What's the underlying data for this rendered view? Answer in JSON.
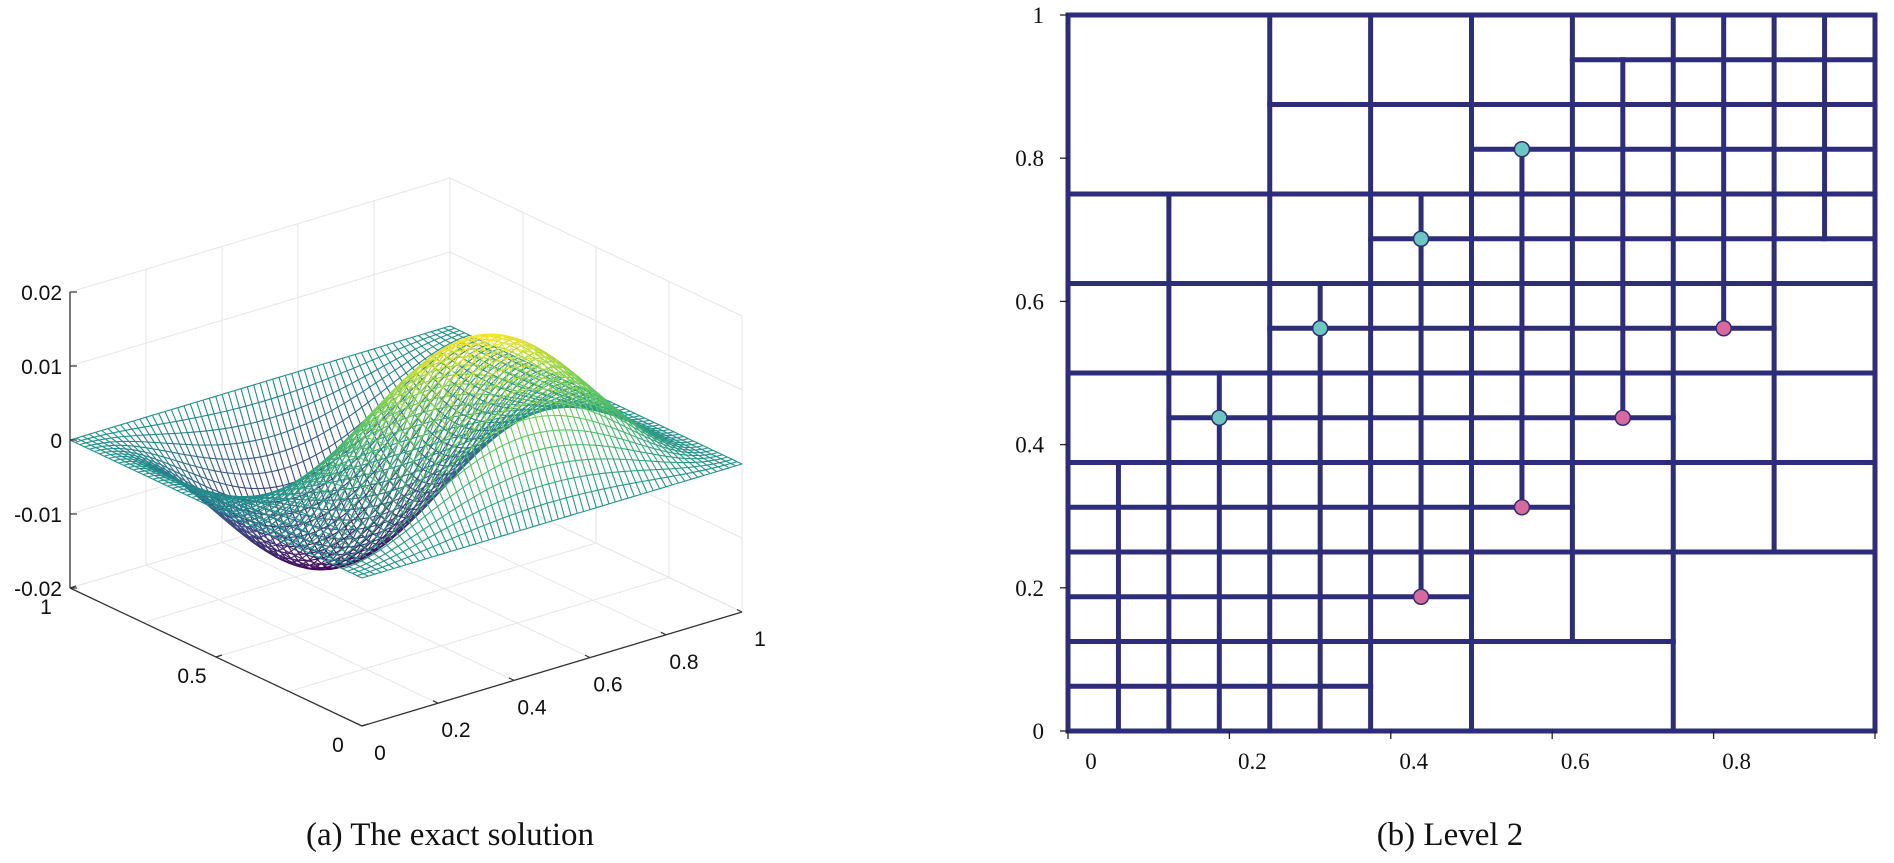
{
  "figure": {
    "caption_a": "(a) The exact solution",
    "caption_b": "(b) Level 2"
  },
  "chart_data": [
    {
      "type": "surface",
      "title": "",
      "caption": "(a) The exact solution",
      "xlabel": "",
      "ylabel": "",
      "zlabel": "",
      "xlim": [
        0,
        1
      ],
      "ylim": [
        0,
        1
      ],
      "zlim": [
        -0.02,
        0.02
      ],
      "x_ticks": [
        "0",
        "0.2",
        "0.4",
        "0.6",
        "0.8",
        "1"
      ],
      "y_ticks": [
        "0",
        "0.5",
        "1"
      ],
      "z_ticks": [
        "0.02",
        "0.01",
        "0",
        "-0.01",
        "-0.02"
      ],
      "grid": true,
      "mesh_resolution": 60,
      "function": "z = 0.02 * sin(2*pi*y) * x^2 * (1 - x)^2 * 16 (approximate reconstruction)",
      "colormap": [
        "#440154",
        "#3b528b",
        "#21918c",
        "#5ec962",
        "#fde725"
      ]
    },
    {
      "type": "mesh",
      "title": "",
      "caption": "(b) Level 2",
      "xlim": [
        0,
        1
      ],
      "ylim": [
        0,
        1
      ],
      "x_ticks": [
        "0",
        "0.2",
        "0.4",
        "0.6",
        "0.8",
        "1"
      ],
      "y_ticks": [
        "0",
        "0.2",
        "0.4",
        "0.6",
        "0.8",
        "1"
      ],
      "line_color": "#2e2d7b",
      "vertical_segments": [
        [
          0,
          0,
          1
        ],
        [
          0.0625,
          0,
          0.375
        ],
        [
          0.125,
          0,
          0.75
        ],
        [
          0.1875,
          0,
          0.5
        ],
        [
          0.25,
          0,
          1
        ],
        [
          0.3125,
          0,
          0.625
        ],
        [
          0.375,
          0,
          1
        ],
        [
          0.4375,
          0.1875,
          0.75
        ],
        [
          0.5,
          0,
          1
        ],
        [
          0.5625,
          0.3125,
          0.8125
        ],
        [
          0.625,
          0.125,
          1
        ],
        [
          0.6875,
          0.4375,
          0.9375
        ],
        [
          0.75,
          0,
          1
        ],
        [
          0.8125,
          0.5625,
          1
        ],
        [
          0.875,
          0.25,
          1
        ],
        [
          0.9375,
          0.6875,
          1
        ],
        [
          1,
          0,
          1
        ]
      ],
      "horizontal_segments": [
        [
          0,
          0,
          1
        ],
        [
          0.0625,
          0,
          0.375
        ],
        [
          0.125,
          0,
          0.75
        ],
        [
          0.1875,
          0,
          0.5
        ],
        [
          0.25,
          0,
          1
        ],
        [
          0.3125,
          0,
          0.625
        ],
        [
          0.375,
          0,
          1
        ],
        [
          0.4375,
          0.125,
          0.75
        ],
        [
          0.5,
          0,
          1
        ],
        [
          0.5625,
          0.25,
          0.875
        ],
        [
          0.625,
          0,
          1
        ],
        [
          0.6875,
          0.375,
          1
        ],
        [
          0.75,
          0,
          1
        ],
        [
          0.8125,
          0.5,
          1
        ],
        [
          0.875,
          0.25,
          1
        ],
        [
          0.9375,
          0.625,
          1
        ],
        [
          1,
          0,
          1
        ]
      ],
      "markers": [
        {
          "x": 0.1875,
          "y": 0.4375,
          "color": "#6cc7c0"
        },
        {
          "x": 0.3125,
          "y": 0.5625,
          "color": "#6cc7c0"
        },
        {
          "x": 0.4375,
          "y": 0.6875,
          "color": "#6cc7c0"
        },
        {
          "x": 0.5625,
          "y": 0.8125,
          "color": "#6cc7c0"
        },
        {
          "x": 0.4375,
          "y": 0.1875,
          "color": "#d9699c"
        },
        {
          "x": 0.5625,
          "y": 0.3125,
          "color": "#d9699c"
        },
        {
          "x": 0.6875,
          "y": 0.4375,
          "color": "#d9699c"
        },
        {
          "x": 0.8125,
          "y": 0.5625,
          "color": "#d9699c"
        }
      ]
    }
  ]
}
